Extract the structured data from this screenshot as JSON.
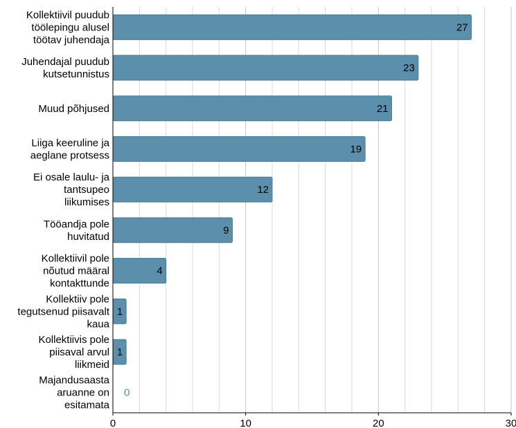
{
  "colors": {
    "bar": "#5b8fab",
    "bar_border": "#4a7a94",
    "grid": "#d9d9d9",
    "axis": "#000000",
    "zero_label": "#5b8fab"
  },
  "chart_data": {
    "type": "bar",
    "orientation": "horizontal",
    "title": "",
    "xlabel": "",
    "ylabel": "",
    "grid": true,
    "legend": "none",
    "xlim": [
      0,
      30
    ],
    "x_ticks": [
      0,
      10,
      20,
      30
    ],
    "categories": [
      [
        "Kollektiivil puudub",
        "töölepingu alusel",
        "töötav juhendaja"
      ],
      [
        "Juhendajal puudub",
        "kutsetunnistus"
      ],
      [
        "Muud põhjused"
      ],
      [
        "Liiga keeruline ja",
        "aeglane protsess"
      ],
      [
        "Ei osale laulu- ja",
        "tantsupeo",
        "liikumises"
      ],
      [
        "Tööandja pole",
        "huvitatud"
      ],
      [
        "Kollektiivil pole",
        "nõutud määral",
        "kontakttunde"
      ],
      [
        "Kollektiiv pole",
        "tegutsenud piisavalt",
        "kaua"
      ],
      [
        "Kollektiivis pole",
        "piisaval arvul",
        "liikmeid"
      ],
      [
        "Majandusaasta",
        "aruanne on",
        "esitamata"
      ]
    ],
    "values": [
      27,
      23,
      21,
      19,
      12,
      9,
      4,
      1,
      1,
      0
    ]
  }
}
